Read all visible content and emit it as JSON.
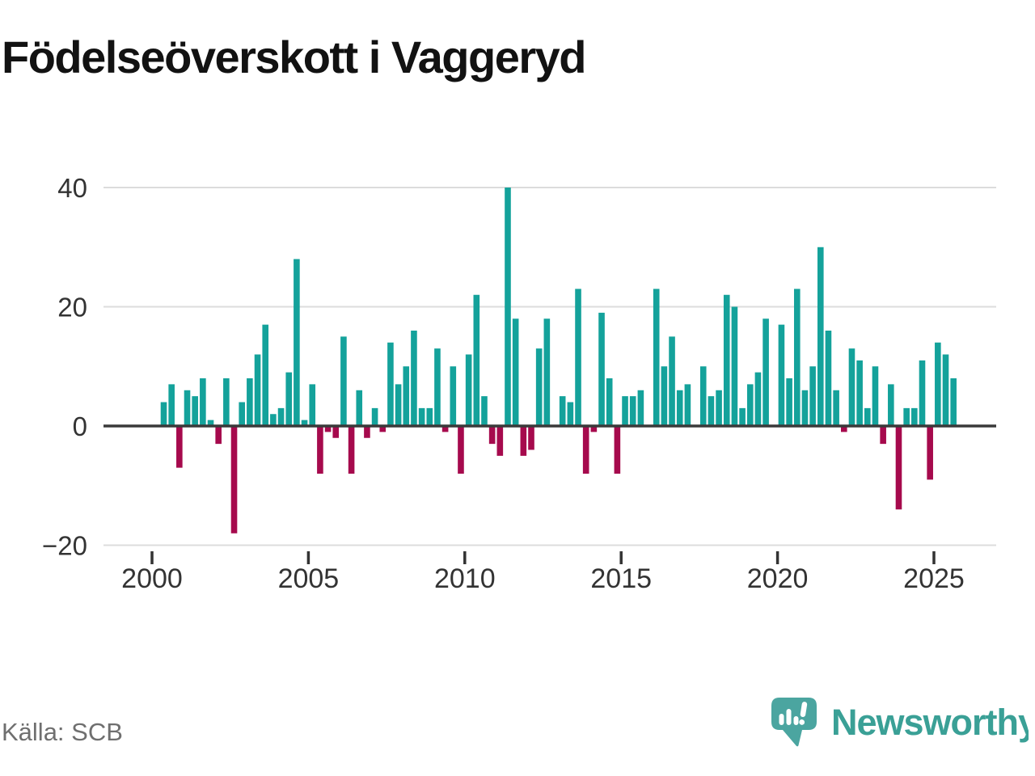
{
  "title": "Födelseöverskott i Vaggeryd",
  "source": "Källa: SCB",
  "brand": {
    "name": "Newsworthy",
    "icon": "speech-bubble-bar-chart-exclamation",
    "color": "#3aa096",
    "icon_color": "#4ba5a0"
  },
  "chart_data": {
    "type": "bar",
    "title": "Födelseöverskott i Vaggeryd",
    "xlabel": "",
    "ylabel": "",
    "period": "quarterly",
    "start": {
      "year": 2000,
      "quarter": 1
    },
    "end": {
      "year": 2025,
      "quarter": 3
    },
    "values": [
      0,
      4,
      7,
      -7,
      6,
      5,
      8,
      1,
      -3,
      8,
      -18,
      4,
      8,
      12,
      17,
      2,
      3,
      9,
      28,
      1,
      7,
      -8,
      -1,
      -2,
      15,
      -8,
      6,
      -2,
      3,
      -1,
      14,
      7,
      10,
      16,
      3,
      3,
      13,
      -1,
      10,
      -8,
      12,
      22,
      5,
      -3,
      -5,
      40,
      18,
      -5,
      -4,
      13,
      18,
      0,
      5,
      4,
      23,
      -8,
      -1,
      19,
      8,
      -8,
      5,
      5,
      6,
      0,
      23,
      10,
      15,
      6,
      7,
      0,
      10,
      5,
      6,
      22,
      20,
      3,
      7,
      9,
      18,
      0,
      17,
      8,
      23,
      6,
      10,
      30,
      16,
      6,
      -1,
      13,
      11,
      3,
      10,
      -3,
      7,
      -14,
      3,
      3,
      11,
      -9,
      14,
      12,
      8
    ],
    "x_tick_years": [
      2000,
      2005,
      2010,
      2015,
      2020,
      2025
    ],
    "y_ticks": [
      40,
      20,
      0,
      -20
    ],
    "y_tick_labels": [
      "40",
      "20",
      "0",
      "−20"
    ],
    "ylim": [
      -22,
      42
    ],
    "grid": "horizontal",
    "legend": "none",
    "colors": {
      "positive": "#14a29b",
      "negative": "#a60a4d",
      "gridline": "#dcdcdc",
      "zero_line": "#3a3a3a",
      "tick_text": "#333333"
    }
  }
}
